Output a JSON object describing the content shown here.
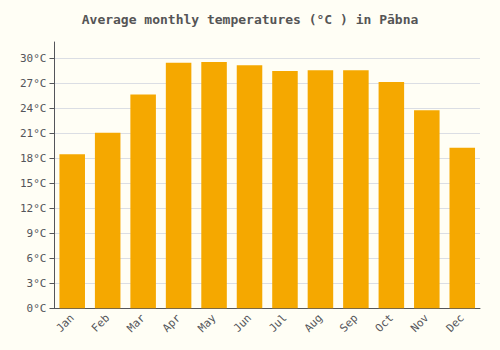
{
  "chart_data": {
    "type": "bar",
    "title": "Average monthly temperatures (°C ) in Pābna",
    "categories": [
      "Jan",
      "Feb",
      "Mar",
      "Apr",
      "May",
      "Jun",
      "Jul",
      "Aug",
      "Sep",
      "Oct",
      "Nov",
      "Dec"
    ],
    "values": [
      18.5,
      21.1,
      25.7,
      29.5,
      29.6,
      29.2,
      28.5,
      28.6,
      28.6,
      27.2,
      23.8,
      19.3
    ],
    "color": "#F5A800",
    "ylim": [
      0,
      32
    ],
    "yticks": [
      {
        "value": 0,
        "label": "0°C"
      },
      {
        "value": 3,
        "label": "3°C"
      },
      {
        "value": 6,
        "label": "6°C"
      },
      {
        "value": 9,
        "label": "9°C"
      },
      {
        "value": 12,
        "label": "12°C"
      },
      {
        "value": 15,
        "label": "15°C"
      },
      {
        "value": 18,
        "label": "18°C"
      },
      {
        "value": 21,
        "label": "21°C"
      },
      {
        "value": 24,
        "label": "24°C"
      },
      {
        "value": 27,
        "label": "27°C"
      },
      {
        "value": 30,
        "label": "30°C"
      }
    ],
    "grid": true
  }
}
